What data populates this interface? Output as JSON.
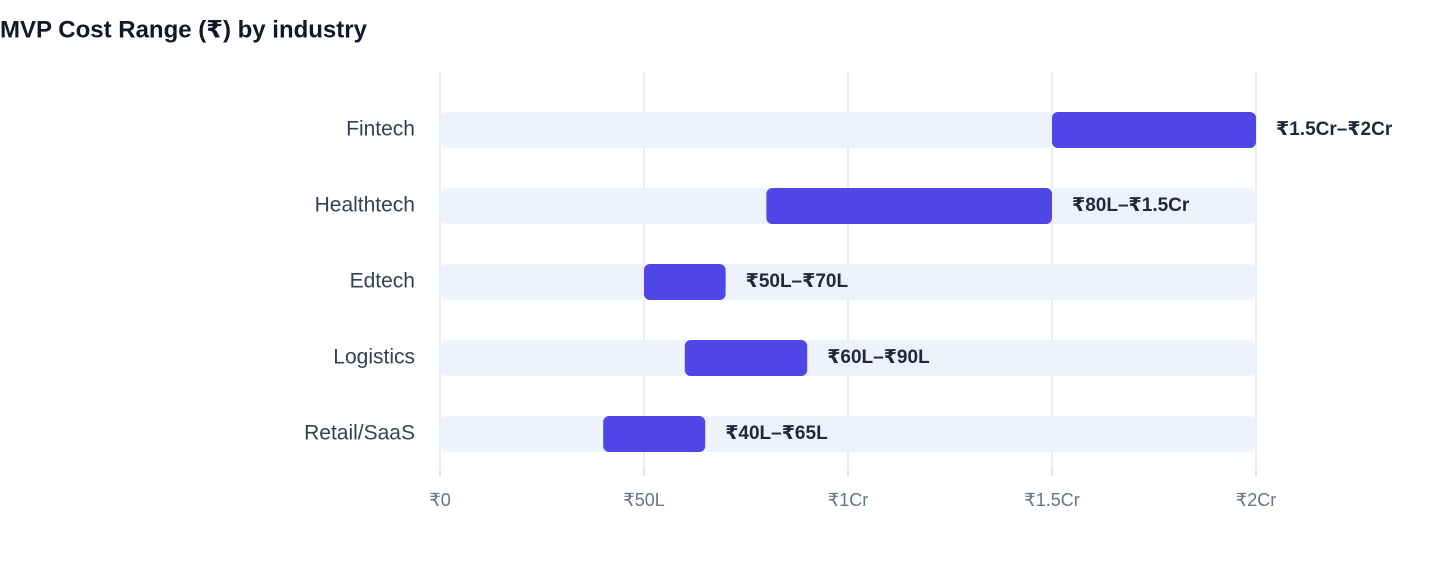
{
  "chart_data": {
    "type": "range-bar",
    "title": "MVP Cost Range (₹) by industry",
    "categories": [
      "Fintech",
      "Healthtech",
      "Edtech",
      "Logistics",
      "Retail/SaaS"
    ],
    "low": [
      150,
      80,
      50,
      60,
      40
    ],
    "high": [
      200,
      150,
      70,
      90,
      65
    ],
    "value_labels": [
      "₹1.5Cr–₹2Cr",
      "₹80L–₹1.5Cr",
      "₹50L–₹70L",
      "₹60L–₹90L",
      "₹40L–₹65L"
    ],
    "color": "#4f46e5",
    "xlim": [
      0,
      200
    ],
    "xticks": [
      {
        "value": 0,
        "label": "₹0"
      },
      {
        "value": 50,
        "label": "₹50L"
      },
      {
        "value": 100,
        "label": "₹1Cr"
      },
      {
        "value": 150,
        "label": "₹1.5Cr"
      },
      {
        "value": 200,
        "label": "₹2Cr"
      }
    ],
    "grid": true
  }
}
